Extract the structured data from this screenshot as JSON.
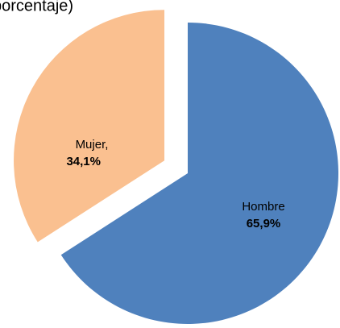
{
  "chart_data": {
    "type": "pie",
    "title": "porcentaje)",
    "categories": [
      "Hombre",
      "Mujer,"
    ],
    "values": [
      65.9,
      34.1
    ],
    "value_labels": [
      "65,9%",
      "34,1%"
    ],
    "colors": [
      "#4f81bd",
      "#fac090"
    ]
  }
}
